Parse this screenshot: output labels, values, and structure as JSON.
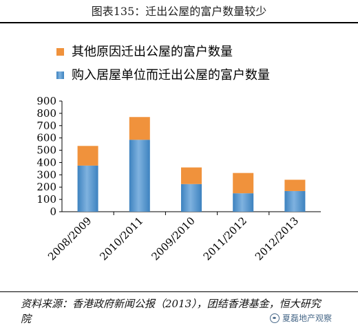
{
  "figure_title": "图表135：迁出公屋的富户数量较少",
  "source_text": "资料来源：香港政府新闻公报（2013），团结香港基金，恒大研究院",
  "watermark_text": "夏磊地产观察",
  "colors": {
    "top_series": "#f0923c",
    "bottom_series": "#3d82bf",
    "bottom_series_light": "#7fb2df"
  },
  "chart_data": {
    "type": "bar",
    "stacked": true,
    "categories": [
      "2008/2009",
      "2010/2011",
      "2009/2010",
      "2011/2012",
      "2012/2013"
    ],
    "series": [
      {
        "name": "购入居屋单位而迁出公屋的富户数量",
        "values": [
          375,
          585,
          225,
          150,
          168
        ]
      },
      {
        "name": "其他原因迁出公屋的富户数量",
        "values": [
          160,
          185,
          135,
          165,
          92
        ]
      }
    ],
    "legend": {
      "position": "top-left",
      "order": [
        "其他原因迁出公屋的富户数量",
        "购入居屋单位而迁出公屋的富户数量"
      ]
    },
    "ylim": [
      0,
      900
    ],
    "yticks": [
      0,
      100,
      200,
      300,
      400,
      500,
      600,
      700,
      800,
      900
    ],
    "grid": false,
    "xlabel": "",
    "ylabel": ""
  }
}
